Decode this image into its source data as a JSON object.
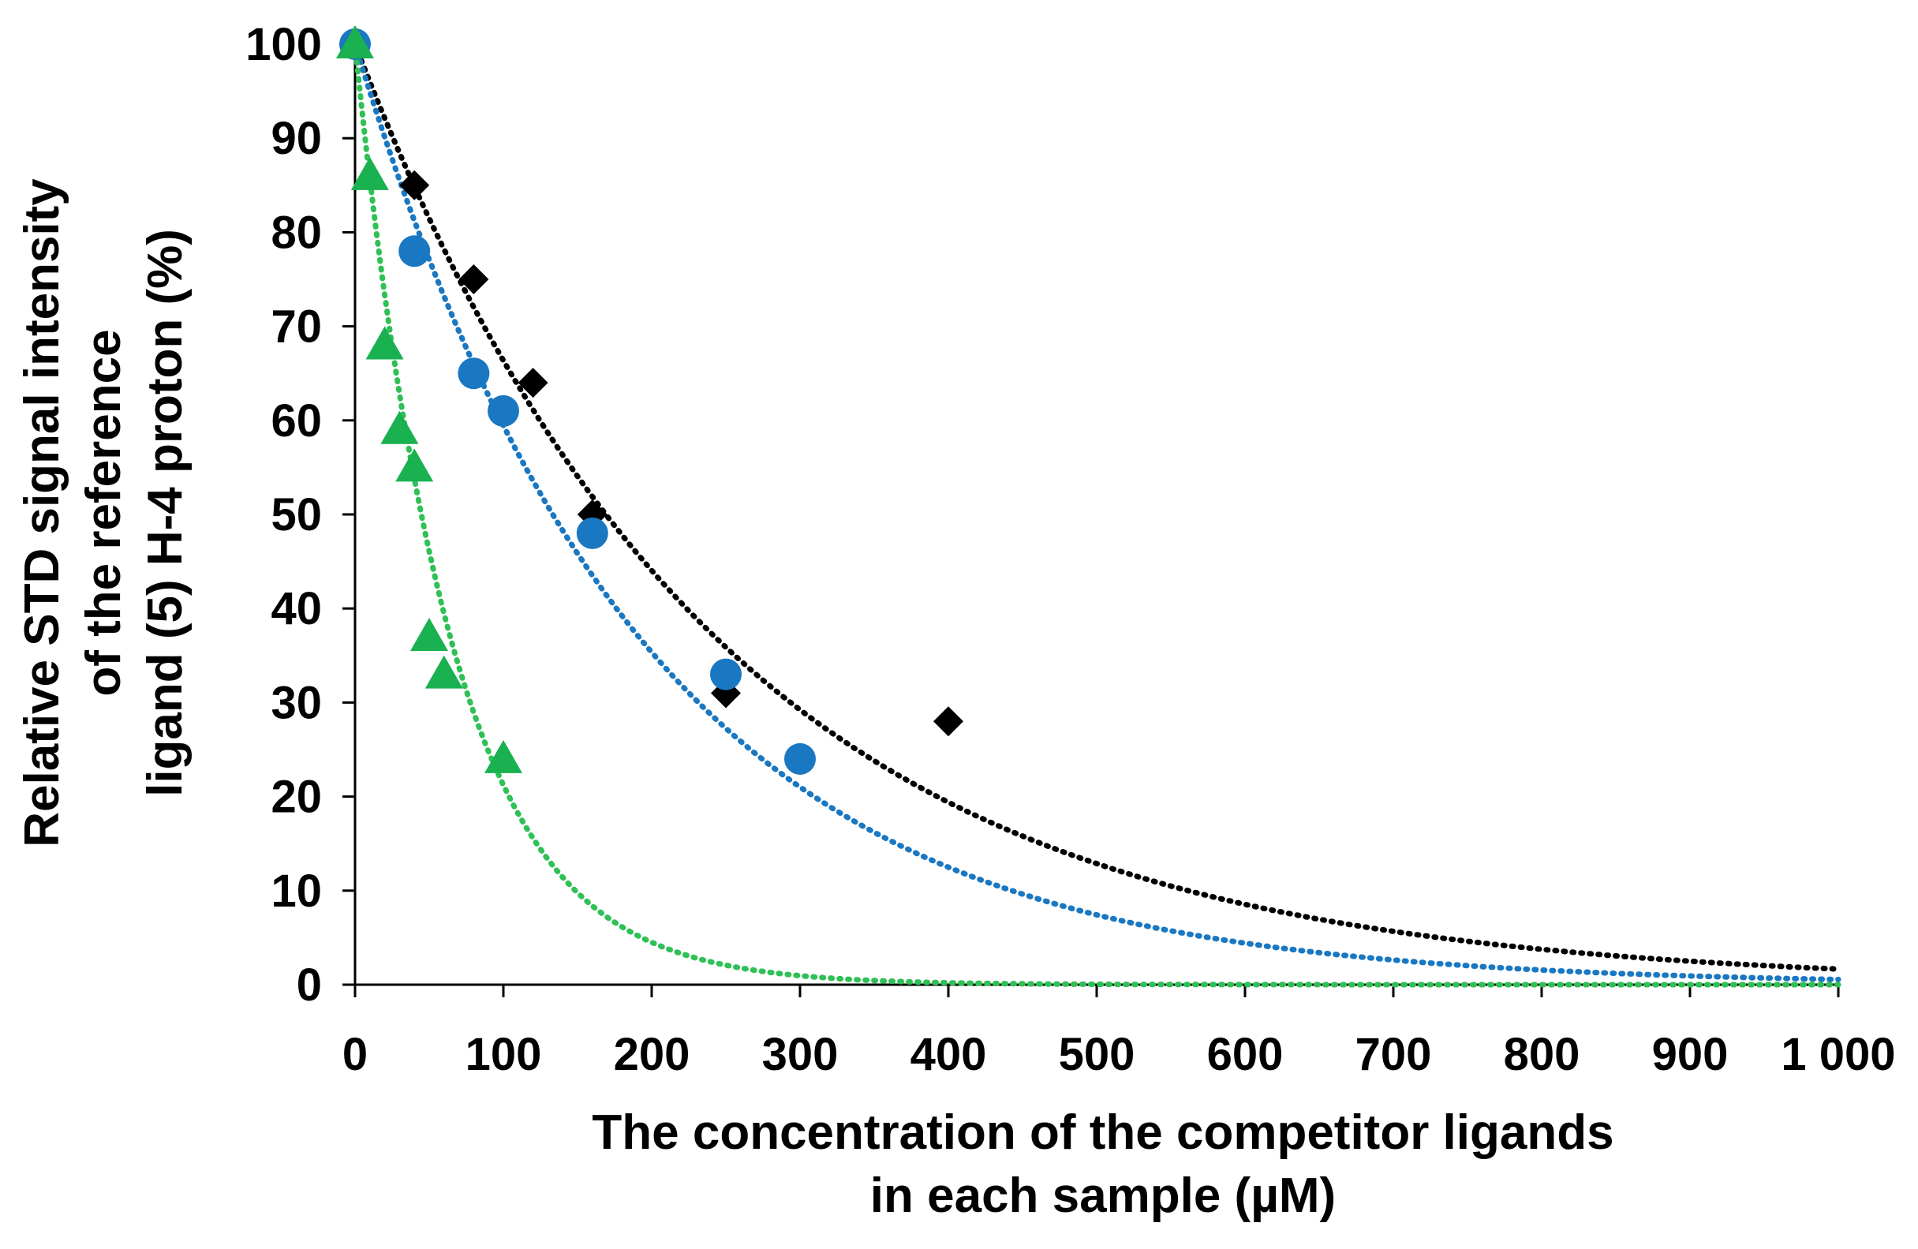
{
  "chart_data": {
    "type": "scatter",
    "title": "",
    "xlabel": [
      "The concentration of the competitor ligands",
      "in each sample (µM)"
    ],
    "ylabel": [
      "Relative STD signal intensity",
      "of the reference",
      "ligand (5) H-4 proton (%)"
    ],
    "xlim": [
      0,
      1000
    ],
    "ylim": [
      0,
      100
    ],
    "x_ticks": [
      0,
      100,
      200,
      300,
      400,
      500,
      600,
      700,
      800,
      900,
      1000
    ],
    "x_tick_labels": [
      "0",
      "100",
      "200",
      "300",
      "400",
      "500",
      "600",
      "700",
      "800",
      "900",
      "1 000"
    ],
    "y_ticks": [
      0,
      10,
      20,
      30,
      40,
      50,
      60,
      70,
      80,
      90,
      100
    ],
    "y_tick_labels": [
      "0",
      "10",
      "20",
      "30",
      "40",
      "50",
      "60",
      "70",
      "80",
      "90",
      "100"
    ],
    "grid": false,
    "legend": "none",
    "series": [
      {
        "name": "black-diamonds",
        "marker": "diamond",
        "color": "#000000",
        "x": [
          0,
          40,
          80,
          120,
          160,
          250,
          400
        ],
        "y": [
          100,
          85,
          75,
          64,
          50,
          31,
          28
        ],
        "trend": {
          "type": "exponential",
          "a": 100,
          "k": 0.0041,
          "color": "#000000"
        }
      },
      {
        "name": "blue-circles",
        "marker": "circle",
        "color": "#1a78c2",
        "x": [
          0,
          40,
          80,
          100,
          160,
          250,
          300
        ],
        "y": [
          100,
          78,
          65,
          61,
          48,
          33,
          24
        ],
        "trend": {
          "type": "exponential",
          "a": 100,
          "k": 0.0052,
          "color": "#1a78c2"
        }
      },
      {
        "name": "green-triangles",
        "marker": "triangle",
        "color": "#1ab150",
        "x": [
          0,
          10,
          20,
          30,
          40,
          50,
          60,
          100
        ],
        "y": [
          100,
          86,
          68,
          59,
          55,
          37,
          33,
          24
        ],
        "trend": {
          "type": "exponential",
          "a": 100,
          "k": 0.0155,
          "color": "#2fc056"
        }
      }
    ]
  }
}
